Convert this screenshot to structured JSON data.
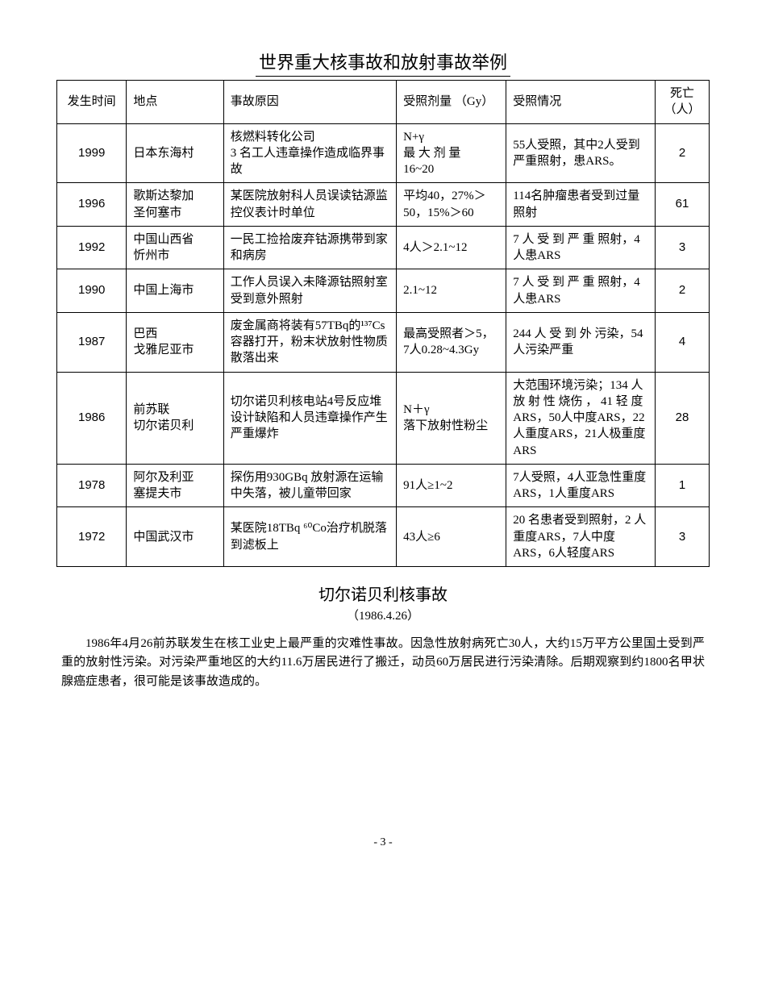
{
  "title": "世界重大核事故和放射事故举例",
  "table": {
    "columns": [
      "发生时间",
      "地点",
      "事故原因",
      "受照剂量\n（Gy）",
      "受照情况",
      "死亡\n（人）"
    ],
    "rows": [
      {
        "year": "1999",
        "loc": "日本东海村",
        "cause": "核燃料转化公司\n3 名工人违章操作造成临界事故",
        "dose": "N+γ\n最 大 剂 量\n16~20",
        "cond": "55人受照，其中2人受到严重照射，患ARS。",
        "death": "2"
      },
      {
        "year": "1996",
        "loc": "歌斯达黎加\n圣何塞市",
        "cause": "某医院放射科人员误读钴源监控仪表计时单位",
        "dose": "平均40，27%＞50，15%＞60",
        "cond": "114名肿瘤患者受到过量照射",
        "death": "61"
      },
      {
        "year": "1992",
        "loc": "中国山西省\n忻州市",
        "cause": "一民工捡拾废弃钴源携带到家和病房",
        "dose": "4人＞2.1~12",
        "cond": "7 人 受 到 严 重 照射，4人患ARS",
        "death": "3"
      },
      {
        "year": "1990",
        "loc": "中国上海市",
        "cause": "工作人员误入未降源钴照射室受到意外照射",
        "dose": "2.1~12",
        "cond": "7 人 受 到 严 重 照射，4人患ARS",
        "death": "2"
      },
      {
        "year": "1987",
        "loc": "巴西\n戈雅尼亚市",
        "cause": "废金属商将装有57TBq的¹³⁷Cs容器打开，粉末状放射性物质散落出来",
        "dose": "最高受照者＞5，7人0.28~4.3Gy",
        "cond": "244 人 受 到 外 污染，54人污染严重",
        "death": "4"
      },
      {
        "year": "1986",
        "loc": "前苏联\n切尔诺贝利",
        "cause": "切尔诺贝利核电站4号反应堆设计缺陷和人员违章操作产生严重爆炸",
        "dose": "N＋γ\n落下放射性粉尘",
        "cond": "大范围环境污染；134 人 放 射 性 烧伤 ， 41 轻 度ARS，50人中度ARS，22人重度ARS，21人极重度ARS",
        "death": "28"
      },
      {
        "year": "1978",
        "loc": "阿尔及利亚\n塞提夫市",
        "cause": "探伤用930GBq 放射源在运输中失落，被儿童带回家",
        "dose": "91人≥1~2",
        "cond": "7人受照，4人亚急性重度ARS，1人重度ARS",
        "death": "1"
      },
      {
        "year": "1972",
        "loc": "中国武汉市",
        "cause": "某医院18TBq ⁶⁰Co治疗机脱落到滤板上",
        "dose": "43人≥6",
        "cond": "20 名患者受到照射，2 人重度ARS，7人中度ARS，6人轻度ARS",
        "death": "3"
      }
    ]
  },
  "subtitle": "切尔诺贝利核事故",
  "subdate": "（1986.4.26）",
  "paragraph": "1986年4月26前苏联发生在核工业史上最严重的灾难性事故。因急性放射病死亡30人，大约15万平方公里国土受到严重的放射性污染。对污染严重地区的大约11.6万居民进行了搬迁，动员60万居民进行污染清除。后期观察到约1800名甲状腺癌症患者，很可能是该事故造成的。",
  "pagenum": "- 3 -"
}
